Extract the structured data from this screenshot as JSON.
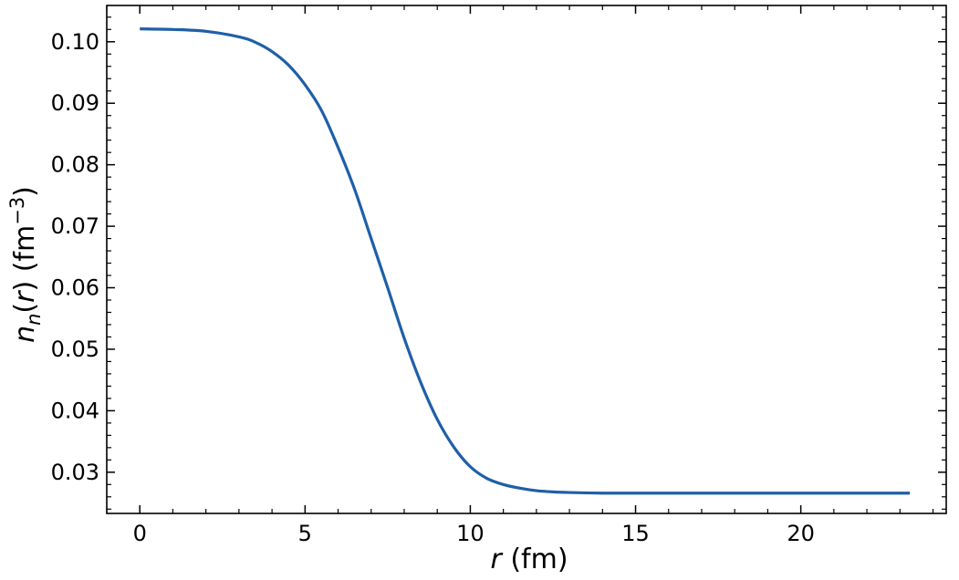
{
  "chart_data": {
    "type": "line",
    "title": "",
    "xlabel": {
      "italic": "r",
      "rest": " (fm)"
    },
    "ylabel": {
      "n": "n",
      "sub": "n",
      "mid": "(",
      "r": "r",
      "close": ") (fm",
      "sup": "−3",
      "end": ")"
    },
    "xlim": [
      -1.0,
      24.4
    ],
    "ylim": [
      0.0233,
      0.1059
    ],
    "x_ticks": [
      0,
      5,
      10,
      15,
      20
    ],
    "x_tick_labels": [
      "0",
      "5",
      "10",
      "15",
      "20"
    ],
    "x_minor_step": 1,
    "y_ticks": [
      0.03,
      0.04,
      0.05,
      0.06,
      0.07,
      0.08,
      0.09,
      0.1
    ],
    "y_tick_labels": [
      "0.03",
      "0.04",
      "0.05",
      "0.06",
      "0.07",
      "0.08",
      "0.09",
      "0.10"
    ],
    "y_minor_step": 0.002,
    "grid": false,
    "series": [
      {
        "color": "#1f5fa8",
        "x": [
          0,
          1,
          2,
          3,
          3.5,
          4,
          4.5,
          5,
          5.5,
          6,
          6.5,
          7,
          7.5,
          8,
          8.5,
          9,
          9.5,
          10,
          10.5,
          11,
          11.5,
          12,
          12.5,
          13,
          14,
          15,
          16,
          18,
          20,
          22,
          23.3
        ],
        "y": [
          0.1021,
          0.102,
          0.1017,
          0.1008,
          0.0999,
          0.0984,
          0.0962,
          0.093,
          0.0888,
          0.0828,
          0.076,
          0.068,
          0.06,
          0.0518,
          0.0446,
          0.0386,
          0.0341,
          0.0309,
          0.029,
          0.028,
          0.0274,
          0.027,
          0.0268,
          0.0267,
          0.0266,
          0.0266,
          0.0266,
          0.0266,
          0.0266,
          0.0266,
          0.0266
        ]
      }
    ]
  }
}
